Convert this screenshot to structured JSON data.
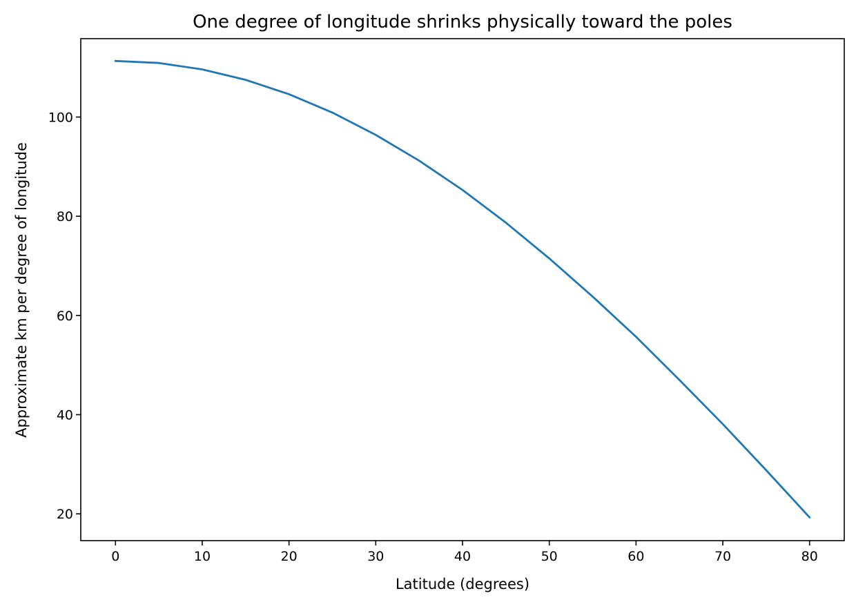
{
  "chart_data": {
    "type": "line",
    "title": "One degree of longitude shrinks physically toward the poles",
    "xlabel": "Latitude (degrees)",
    "ylabel": "Approximate km per degree of longitude",
    "xlim": [
      -4,
      84
    ],
    "ylim": [
      14.6,
      115.8
    ],
    "xticks": [
      0,
      10,
      20,
      30,
      40,
      50,
      60,
      70,
      80
    ],
    "yticks": [
      20,
      40,
      60,
      80,
      100
    ],
    "grid": false,
    "legend": "none",
    "series": [
      {
        "color": "#1f77b4",
        "x": [
          0,
          5,
          10,
          15,
          20,
          25,
          30,
          35,
          40,
          45,
          50,
          55,
          60,
          65,
          70,
          75,
          80
        ],
        "values": [
          111.3,
          110.9,
          109.6,
          107.5,
          104.6,
          100.9,
          96.4,
          91.2,
          85.3,
          78.7,
          71.5,
          63.8,
          55.7,
          47.0,
          38.1,
          28.8,
          19.3
        ]
      }
    ]
  }
}
